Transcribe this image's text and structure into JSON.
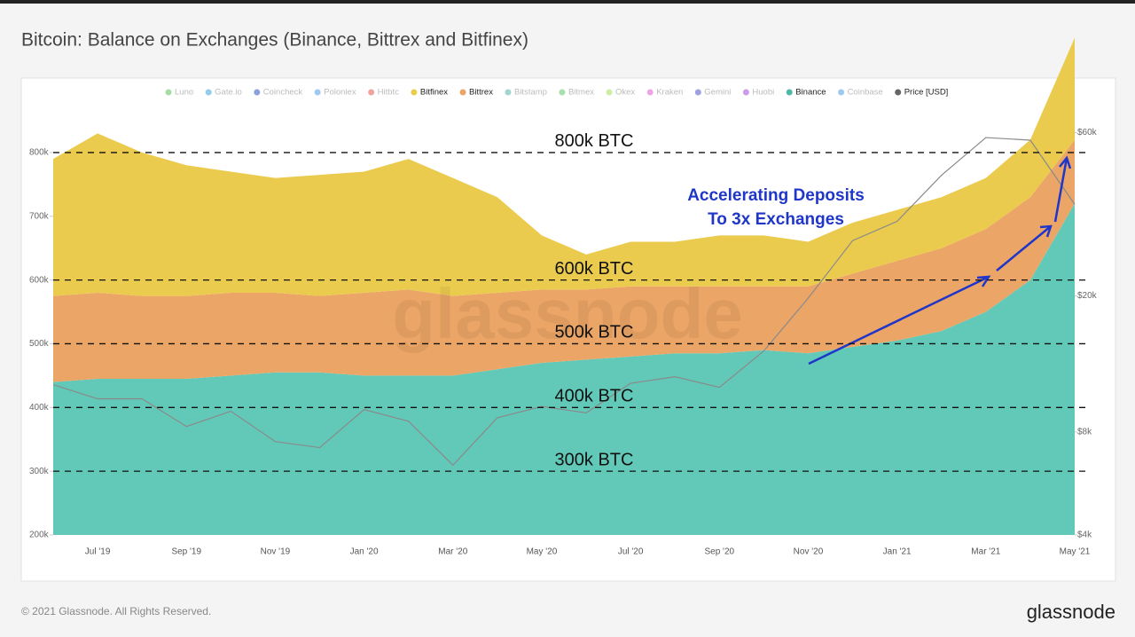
{
  "chart_data": {
    "type": "stacked_area",
    "title": "Bitcoin: Balance on Exchanges (Binance, Bittrex and Bitfinex)",
    "categories": [
      null,
      "Jul '19",
      null,
      "Sep '19",
      null,
      "Nov '19",
      null,
      "Jan '20",
      null,
      "Mar '20",
      null,
      "May '20",
      null,
      "Jul '20",
      null,
      "Sep '20",
      null,
      "Nov '20",
      null,
      "Jan '21",
      null,
      "Mar '21",
      null,
      "May '21"
    ],
    "series": [
      {
        "name": "Binance",
        "color": "#62c9b8",
        "values": [
          240000,
          245000,
          245000,
          245000,
          250000,
          255000,
          255000,
          250000,
          250000,
          250000,
          260000,
          270000,
          275000,
          280000,
          285000,
          285000,
          290000,
          285000,
          295000,
          305000,
          320000,
          350000,
          400000,
          520000
        ]
      },
      {
        "name": "Bittrex",
        "color": "#eba566",
        "values": [
          135000,
          135000,
          130000,
          130000,
          130000,
          125000,
          120000,
          130000,
          135000,
          125000,
          120000,
          115000,
          110000,
          110000,
          105000,
          105000,
          100000,
          105000,
          115000,
          125000,
          130000,
          130000,
          130000,
          100000
        ]
      },
      {
        "name": "Bitfinex",
        "color": "#ebcb4e",
        "values": [
          215000,
          250000,
          225000,
          205000,
          190000,
          180000,
          190000,
          190000,
          205000,
          185000,
          150000,
          85000,
          55000,
          70000,
          70000,
          80000,
          80000,
          70000,
          80000,
          80000,
          80000,
          80000,
          90000,
          160000
        ]
      },
      {
        "name": "Price [USD]",
        "color": "#8a8a8a",
        "axis": "y2",
        "values": [
          11000,
          10000,
          10000,
          8300,
          9200,
          7500,
          7200,
          9300,
          8600,
          6400,
          8800,
          9500,
          9100,
          11100,
          11600,
          10800,
          13800,
          19700,
          29000,
          33000,
          45000,
          58000,
          57000,
          37000
        ]
      }
    ],
    "ylim": [
      200000,
      850000
    ],
    "yticks": [
      {
        "value": 200000,
        "label": "200k"
      },
      {
        "value": 300000,
        "label": "300k"
      },
      {
        "value": 400000,
        "label": "400k"
      },
      {
        "value": 500000,
        "label": "500k"
      },
      {
        "value": 600000,
        "label": "600k"
      },
      {
        "value": 700000,
        "label": "700k"
      },
      {
        "value": 800000,
        "label": "800k"
      }
    ],
    "y2lim": [
      4000,
      65000
    ],
    "y2_log": true,
    "y2ticks": [
      {
        "value": 4000,
        "label": "$4k"
      },
      {
        "value": 8000,
        "label": "$8k"
      },
      {
        "value": 20000,
        "label": "$20k"
      },
      {
        "value": 60000,
        "label": "$60k"
      }
    ],
    "reference_lines": [
      {
        "value": 800000,
        "label": "800k BTC"
      },
      {
        "value": 600000,
        "label": "600k BTC"
      },
      {
        "value": 500000,
        "label": "500k BTC"
      },
      {
        "value": 400000,
        "label": "400k BTC"
      },
      {
        "value": 300000,
        "label": "300k BTC"
      }
    ],
    "annotation": [
      "Accelerating Deposits",
      "To 3x Exchanges"
    ],
    "legend": [
      {
        "name": "Luno",
        "color": "#5cc15f",
        "active": false
      },
      {
        "name": "Gate.io",
        "color": "#3aa6d6",
        "active": false
      },
      {
        "name": "Coincheck",
        "color": "#2a52c9",
        "active": false
      },
      {
        "name": "Poloniex",
        "color": "#4a9ee6",
        "active": false
      },
      {
        "name": "Hitbtc",
        "color": "#e0574b",
        "active": false
      },
      {
        "name": "Bitfinex",
        "color": "#ebcb4e",
        "active": true
      },
      {
        "name": "Bittrex",
        "color": "#eba566",
        "active": true
      },
      {
        "name": "Bitstamp",
        "color": "#5ab5a6",
        "active": false
      },
      {
        "name": "Bitmex",
        "color": "#5fc76a",
        "active": false
      },
      {
        "name": "Okex",
        "color": "#a6e05a",
        "active": false
      },
      {
        "name": "Kraken",
        "color": "#e05ad6",
        "active": false
      },
      {
        "name": "Gemini",
        "color": "#4a55c9",
        "active": false
      },
      {
        "name": "Huobi",
        "color": "#9a4ad6",
        "active": false
      },
      {
        "name": "Binance",
        "color": "#4fb9a8",
        "active": true
      },
      {
        "name": "Coinbase",
        "color": "#4a9ee6",
        "active": false
      },
      {
        "name": "Price [USD]",
        "color": "#666666",
        "active": true
      }
    ],
    "watermark": "glassnode",
    "footer": "© 2021 Glassnode. All Rights Reserved.",
    "logo": "glassnode"
  }
}
